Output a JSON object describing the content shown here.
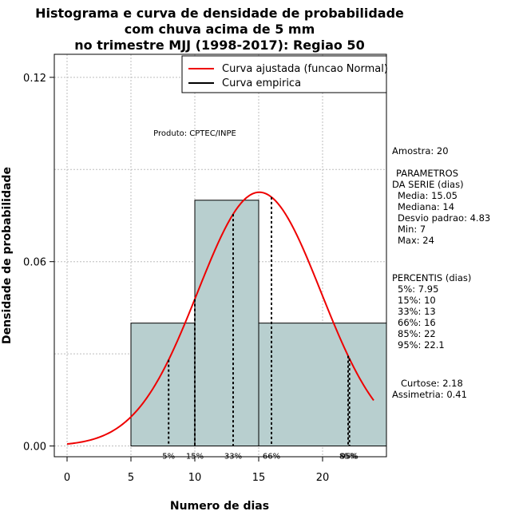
{
  "chart_data": {
    "type": "histogram",
    "title": [
      "Histograma e curva de densidade de probabilidade",
      "com chuva acima de 5 mm",
      "no trimestre MJJ (1998-2017): Regiao 50"
    ],
    "xlabel": "Numero de dias",
    "ylabel": "Densidade de probabilidade",
    "xlim": [
      -1,
      25
    ],
    "ylim": [
      -0.0035,
      0.1275
    ],
    "x_ticks": [
      0,
      5,
      10,
      15,
      20
    ],
    "y_ticks": [
      0.0,
      0.06,
      0.12
    ],
    "y_tick_labels": [
      "0.00",
      "0.06",
      "0.12"
    ],
    "grid": true,
    "bins": [
      {
        "from": 5,
        "to": 10,
        "density": 0.04
      },
      {
        "from": 10,
        "to": 15,
        "density": 0.08
      },
      {
        "from": 15,
        "to": 25,
        "density": 0.04
      }
    ],
    "normal_curve": {
      "mean": 15.05,
      "sd": 4.83,
      "x_from": 0,
      "x_to": 24,
      "color": "#ee0000"
    },
    "bar_color": "#b8cfcf",
    "percentile_lines": [
      {
        "x": 7.95,
        "label": "5%"
      },
      {
        "x": 10,
        "label": "15%"
      },
      {
        "x": 13,
        "label": "33%"
      },
      {
        "x": 16,
        "label": "66%"
      },
      {
        "x": 22,
        "label": "85%"
      },
      {
        "x": 22.1,
        "label": "95%"
      }
    ],
    "legend": {
      "position": "top-right",
      "entries": [
        {
          "label": "Curva ajustada (funcao Normal)",
          "color": "#ee0000"
        },
        {
          "label": "Curva empirica",
          "color": "#000000"
        }
      ]
    },
    "annotation": "Produto: CPTEC/INPE"
  },
  "stats": {
    "amostra": "Amostra: 20",
    "param_title_1": "PARAMETROS",
    "param_title_2": "DA SERIE (dias)",
    "media": "Media: 15.05",
    "mediana": "Mediana: 14",
    "desvio": "Desvio padrao: 4.83",
    "min": "Min: 7",
    "max": "Max: 24",
    "perc_title": "PERCENTIS (dias)",
    "p5": "5%: 7.95",
    "p15": "15%: 10",
    "p33": "33%: 13",
    "p66": "66%: 16",
    "p85": "85%: 22",
    "p95": "95%: 22.1",
    "curtose": "Curtose: 2.18",
    "assimetria": "Assimetria: 0.41"
  }
}
